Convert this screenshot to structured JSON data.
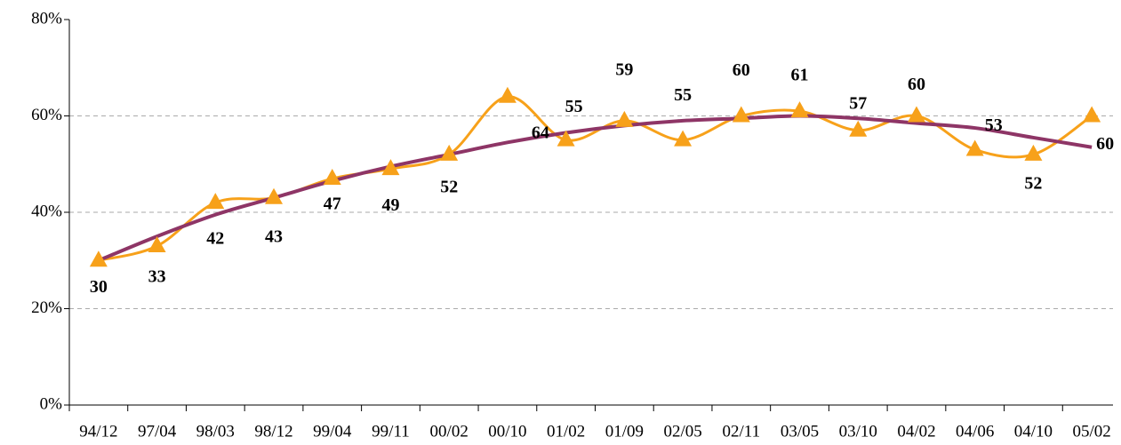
{
  "chart_data": {
    "type": "line",
    "categories": [
      "94/12",
      "97/04",
      "98/03",
      "98/12",
      "99/04",
      "99/11",
      "00/02",
      "00/10",
      "01/02",
      "01/09",
      "02/05",
      "02/11",
      "03/05",
      "03/10",
      "04/02",
      "04/06",
      "04/10",
      "05/02"
    ],
    "series": [
      {
        "color": "#f7a11a",
        "values": [
          30,
          33,
          42,
          43,
          47,
          49,
          52,
          64,
          55,
          59,
          55,
          60,
          61,
          57,
          60,
          53,
          52,
          60
        ]
      },
      {
        "color": "#8e3566",
        "values": [
          30,
          35,
          39.5,
          43,
          46.5,
          49.5,
          52,
          54.5,
          56.5,
          58,
          59,
          59.5,
          60,
          59.5,
          58.5,
          57.5,
          55.5,
          53.5
        ]
      }
    ],
    "ylim": [
      0,
      80
    ],
    "yticks": [
      {
        "value": 0,
        "label": "0%"
      },
      {
        "value": 20,
        "label": "20%"
      },
      {
        "value": 40,
        "label": "40%"
      },
      {
        "value": 60,
        "label": "60%"
      },
      {
        "value": 80,
        "label": "80%"
      }
    ],
    "grid": true
  }
}
